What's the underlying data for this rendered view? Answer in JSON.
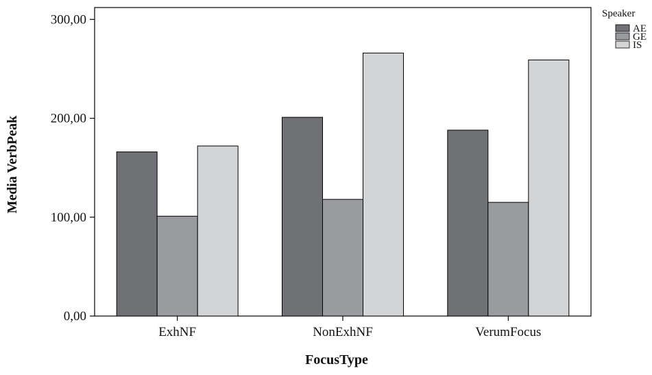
{
  "chart_data": {
    "type": "bar",
    "title": "",
    "xlabel": "FocusType",
    "ylabel": "Media VerbPeak",
    "categories": [
      "ExhNF",
      "NonExhNF",
      "VerumFocus"
    ],
    "yticks": [
      0,
      100,
      200,
      300
    ],
    "ytick_labels": [
      "0,00",
      "100,00",
      "200,00",
      "300,00"
    ],
    "ylim": [
      0,
      312
    ],
    "grid": false,
    "legend": {
      "title": "Speaker",
      "position": "top-right"
    },
    "series": [
      {
        "name": "AE",
        "color": "#707174",
        "values": [
          166,
          201,
          188
        ]
      },
      {
        "name": "GE",
        "color": "#9a9b9e",
        "values": [
          101,
          118,
          115
        ]
      },
      {
        "name": "IS",
        "color": "#d3d4d6",
        "values": [
          172,
          266,
          259
        ]
      }
    ]
  }
}
